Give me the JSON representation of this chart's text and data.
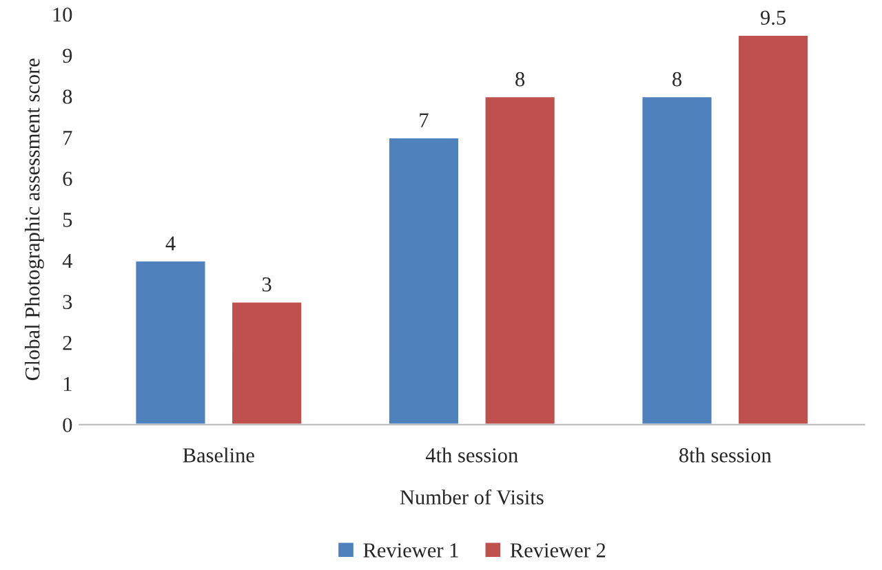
{
  "chart_data": {
    "type": "bar",
    "xlabel": "Number of Visits",
    "ylabel": "Global Photographic assessment score",
    "categories": [
      "Baseline",
      "4th session",
      "8th session"
    ],
    "series": [
      {
        "name": "Reviewer 1",
        "color": "#4f81bd",
        "values": [
          4,
          7,
          8
        ]
      },
      {
        "name": "Reviewer 2",
        "color": "#c0504d",
        "values": [
          3,
          8,
          9.5
        ]
      }
    ],
    "ylim": [
      0,
      10
    ],
    "yticks": [
      0,
      1,
      2,
      3,
      4,
      5,
      6,
      7,
      8,
      9,
      10
    ],
    "data_labels": true,
    "legend": "bottom",
    "grid": false
  }
}
